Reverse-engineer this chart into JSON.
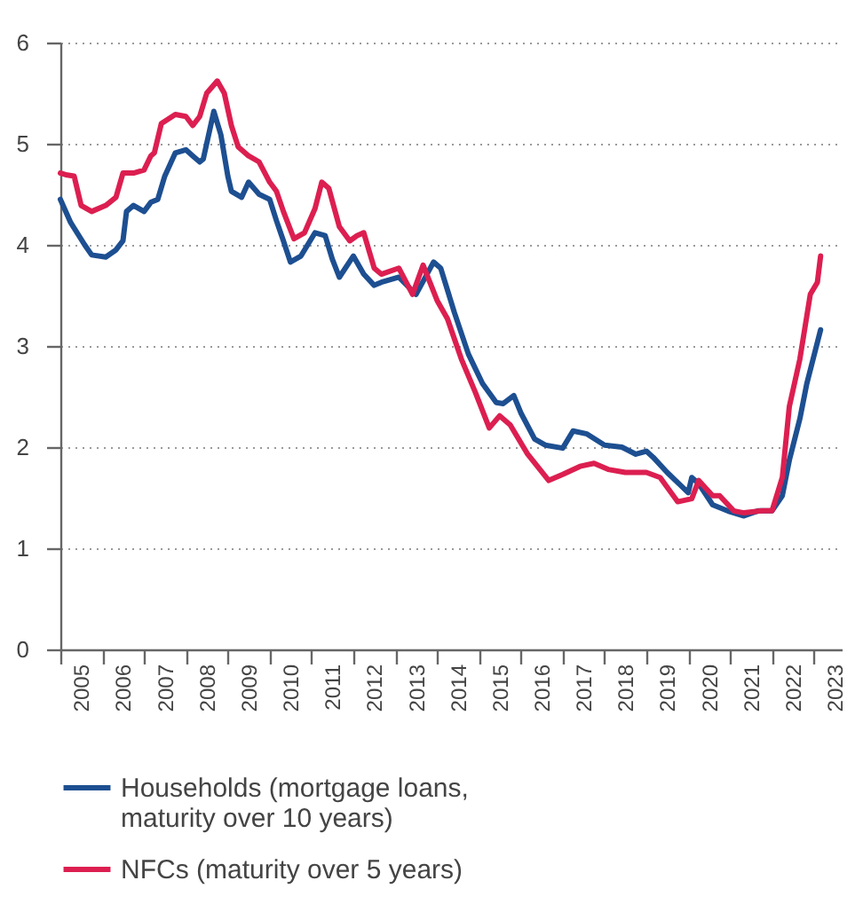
{
  "chart_data": {
    "type": "line",
    "xlim": [
      "2005-01",
      "2023-09"
    ],
    "xticks": [
      {
        "value": "2005-01",
        "label": null
      },
      {
        "value": "2005-07",
        "label": "2005"
      },
      {
        "value": "2006-01",
        "label": null
      },
      {
        "value": "2006-07",
        "label": "2006"
      },
      {
        "value": "2007-01",
        "label": null
      },
      {
        "value": "2007-07",
        "label": "2007"
      },
      {
        "value": "2008-01",
        "label": null
      },
      {
        "value": "2008-07",
        "label": "2008"
      },
      {
        "value": "2009-01",
        "label": null
      },
      {
        "value": "2009-07",
        "label": "2009"
      },
      {
        "value": "2010-01",
        "label": null
      },
      {
        "value": "2010-07",
        "label": "2010"
      },
      {
        "value": "2011-01",
        "label": null
      },
      {
        "value": "2011-07",
        "label": "2011"
      },
      {
        "value": "2012-01",
        "label": null
      },
      {
        "value": "2012-07",
        "label": "2012"
      },
      {
        "value": "2013-01",
        "label": null
      },
      {
        "value": "2013-07",
        "label": "2013"
      },
      {
        "value": "2014-01",
        "label": null
      },
      {
        "value": "2014-07",
        "label": "2014"
      },
      {
        "value": "2015-01",
        "label": null
      },
      {
        "value": "2015-07",
        "label": "2015"
      },
      {
        "value": "2016-01",
        "label": null
      },
      {
        "value": "2016-07",
        "label": "2016"
      },
      {
        "value": "2017-01",
        "label": null
      },
      {
        "value": "2017-07",
        "label": "2017"
      },
      {
        "value": "2018-01",
        "label": null
      },
      {
        "value": "2018-07",
        "label": "2018"
      },
      {
        "value": "2019-01",
        "label": null
      },
      {
        "value": "2019-07",
        "label": "2019"
      },
      {
        "value": "2020-01",
        "label": null
      },
      {
        "value": "2020-07",
        "label": "2020"
      },
      {
        "value": "2021-01",
        "label": null
      },
      {
        "value": "2021-07",
        "label": "2021"
      },
      {
        "value": "2022-01",
        "label": null
      },
      {
        "value": "2022-07",
        "label": "2022"
      },
      {
        "value": "2023-01",
        "label": null
      },
      {
        "value": "2023-07",
        "label": "2023"
      }
    ],
    "ylim": [
      0,
      6
    ],
    "yticks": [
      0,
      1,
      2,
      3,
      4,
      5,
      6
    ],
    "grid": "y",
    "legend": "bottom",
    "line_style": "solid",
    "series": [
      {
        "name": "Households (mortgage loans, maturity over 10 years)",
        "color": "#1d4f91",
        "x": [
          "2005-01",
          "2005-04",
          "2005-08",
          "2005-10",
          "2006-02",
          "2006-05",
          "2006-07",
          "2006-08",
          "2006-10",
          "2007-01",
          "2007-03",
          "2007-05",
          "2007-07",
          "2007-10",
          "2008-01",
          "2008-03",
          "2008-05",
          "2008-06",
          "2008-09",
          "2008-11",
          "2009-01",
          "2009-02",
          "2009-05",
          "2009-07",
          "2009-10",
          "2010-01",
          "2010-03",
          "2010-05",
          "2010-07",
          "2010-10",
          "2011-02",
          "2011-05",
          "2011-07",
          "2011-09",
          "2012-01",
          "2012-04",
          "2012-07",
          "2012-09",
          "2013-02",
          "2013-07",
          "2013-12",
          "2014-02",
          "2014-06",
          "2014-10",
          "2015-02",
          "2015-06",
          "2015-08",
          "2015-11",
          "2016-01",
          "2016-05",
          "2016-08",
          "2017-01",
          "2017-04",
          "2017-08",
          "2018-01",
          "2018-06",
          "2018-10",
          "2019-01",
          "2019-03",
          "2019-07",
          "2020-01",
          "2020-02",
          "2020-04",
          "2020-08",
          "2021-01",
          "2021-05",
          "2021-09",
          "2022-01",
          "2022-04",
          "2022-06",
          "2022-09",
          "2022-11",
          "2023-03"
        ],
        "values": [
          4.45,
          4.22,
          4.0,
          3.9,
          3.88,
          3.95,
          4.04,
          4.33,
          4.39,
          4.33,
          4.42,
          4.45,
          4.68,
          4.91,
          4.94,
          4.88,
          4.82,
          4.85,
          5.32,
          5.09,
          4.68,
          4.53,
          4.47,
          4.62,
          4.5,
          4.45,
          4.24,
          4.04,
          3.83,
          3.89,
          4.12,
          4.09,
          3.86,
          3.68,
          3.89,
          3.71,
          3.6,
          3.63,
          3.68,
          3.51,
          3.83,
          3.77,
          3.33,
          2.92,
          2.63,
          2.44,
          2.43,
          2.51,
          2.34,
          2.08,
          2.02,
          1.99,
          2.16,
          2.13,
          2.02,
          2.0,
          1.93,
          1.96,
          1.9,
          1.75,
          1.55,
          1.7,
          1.64,
          1.43,
          1.36,
          1.32,
          1.37,
          1.37,
          1.52,
          1.87,
          2.28,
          2.63,
          3.16
        ]
      },
      {
        "name": "NFCs (maturity over 5 years)",
        "color": "#dc1f50",
        "x": [
          "2005-01",
          "2005-03",
          "2005-05",
          "2005-07",
          "2005-10",
          "2006-02",
          "2006-05",
          "2006-07",
          "2006-10",
          "2007-01",
          "2007-03",
          "2007-04",
          "2007-06",
          "2007-10",
          "2008-01",
          "2008-03",
          "2008-05",
          "2008-07",
          "2008-10",
          "2008-12",
          "2009-02",
          "2009-04",
          "2009-07",
          "2009-10",
          "2010-01",
          "2010-03",
          "2010-05",
          "2010-08",
          "2010-11",
          "2011-02",
          "2011-04",
          "2011-06",
          "2011-09",
          "2011-12",
          "2012-02",
          "2012-04",
          "2012-07",
          "2012-09",
          "2013-02",
          "2013-06",
          "2013-09",
          "2014-01",
          "2014-04",
          "2014-08",
          "2014-12",
          "2015-04",
          "2015-07",
          "2015-10",
          "2016-03",
          "2016-09",
          "2017-01",
          "2017-06",
          "2017-10",
          "2018-02",
          "2018-07",
          "2019-01",
          "2019-05",
          "2019-10",
          "2020-02",
          "2020-04",
          "2020-08",
          "2020-10",
          "2021-02",
          "2021-05",
          "2021-10",
          "2022-01",
          "2022-04",
          "2022-06",
          "2022-09",
          "2022-12",
          "2023-02",
          "2023-03"
        ],
        "values": [
          4.71,
          4.69,
          4.68,
          4.39,
          4.33,
          4.39,
          4.47,
          4.71,
          4.71,
          4.74,
          4.88,
          4.91,
          5.2,
          5.29,
          5.27,
          5.18,
          5.27,
          5.5,
          5.62,
          5.5,
          5.18,
          4.97,
          4.88,
          4.82,
          4.62,
          4.53,
          4.33,
          4.06,
          4.12,
          4.36,
          4.62,
          4.56,
          4.18,
          4.04,
          4.09,
          4.12,
          3.77,
          3.71,
          3.77,
          3.51,
          3.8,
          3.45,
          3.27,
          2.87,
          2.54,
          2.19,
          2.31,
          2.22,
          1.93,
          1.67,
          1.73,
          1.81,
          1.84,
          1.78,
          1.75,
          1.75,
          1.7,
          1.46,
          1.49,
          1.67,
          1.52,
          1.52,
          1.37,
          1.35,
          1.37,
          1.37,
          1.7,
          2.4,
          2.87,
          3.51,
          3.63,
          3.89
        ]
      }
    ]
  }
}
